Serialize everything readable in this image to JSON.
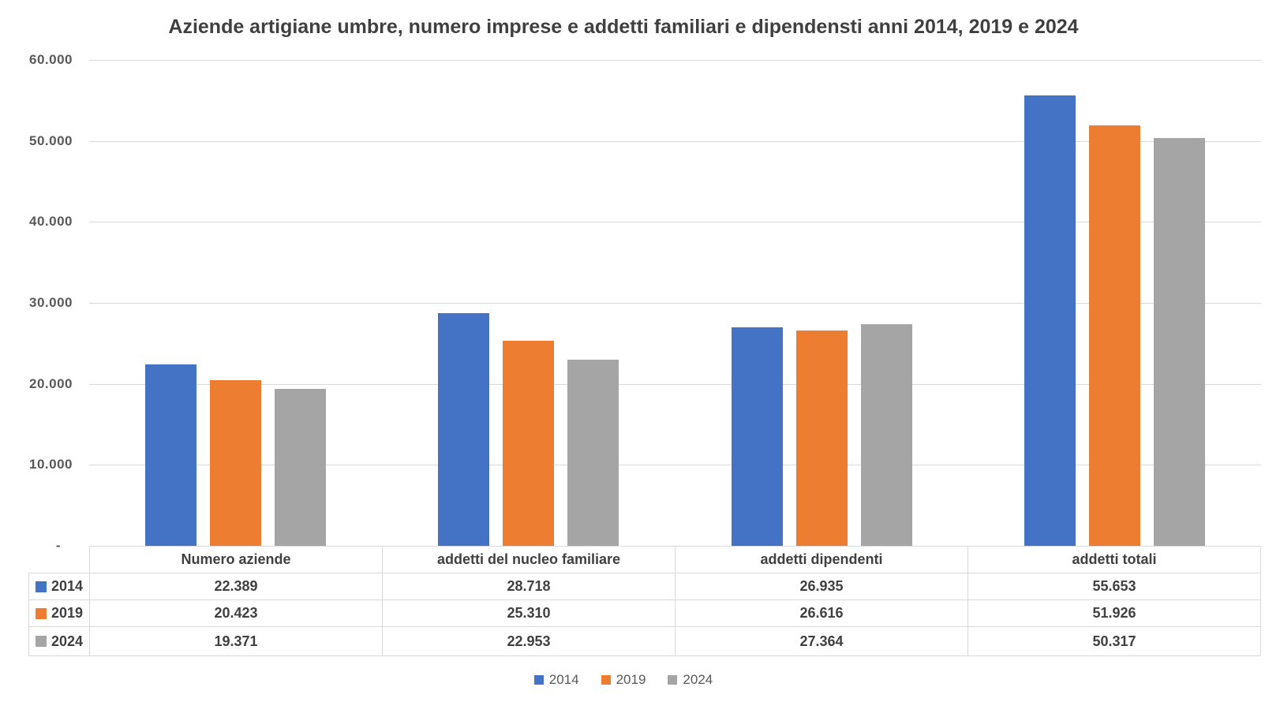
{
  "chart_data": {
    "type": "bar",
    "title": "Aziende artigiane umbre, numero imprese e addetti familiari e dipendensti anni 2014, 2019 e 2024",
    "categories": [
      "Numero aziende",
      "addetti del nucleo familiare",
      "addetti dipendenti",
      "addetti totali"
    ],
    "series": [
      {
        "name": "2014",
        "color": "#4472C4",
        "values": [
          22389,
          28718,
          26935,
          55653
        ],
        "display_values": [
          "22.389",
          "28.718",
          "26.935",
          "55.653"
        ]
      },
      {
        "name": "2019",
        "color": "#ED7D31",
        "values": [
          20423,
          25310,
          26616,
          51926
        ],
        "display_values": [
          "20.423",
          "25.310",
          "26.616",
          "51.926"
        ]
      },
      {
        "name": "2024",
        "color": "#A5A5A5",
        "values": [
          19371,
          22953,
          27364,
          50317
        ],
        "display_values": [
          "19.371",
          "22.953",
          "27.364",
          "50.317"
        ]
      }
    ],
    "xlabel": "",
    "ylabel": "",
    "ylim": [
      0,
      60000
    ],
    "grid": true,
    "legend_position": "bottom",
    "legend_entries": [
      "2014",
      "2019",
      "2024"
    ],
    "data_table_shown": true,
    "y_ticks": [
      {
        "value": 60000,
        "label": "60.000"
      },
      {
        "value": 50000,
        "label": "50.000"
      },
      {
        "value": 40000,
        "label": "40.000"
      },
      {
        "value": 30000,
        "label": "30.000"
      },
      {
        "value": 20000,
        "label": "20.000"
      },
      {
        "value": 10000,
        "label": "10.000"
      },
      {
        "value": 0,
        "label": "-"
      }
    ]
  },
  "colors": {
    "series_2014": "#4472C4",
    "series_2019": "#ED7D31",
    "series_2024": "#A5A5A5",
    "gridline": "#d9d9d9",
    "table_border": "#d9d9d9",
    "title_text": "#404040",
    "axis_text": "#595959"
  }
}
